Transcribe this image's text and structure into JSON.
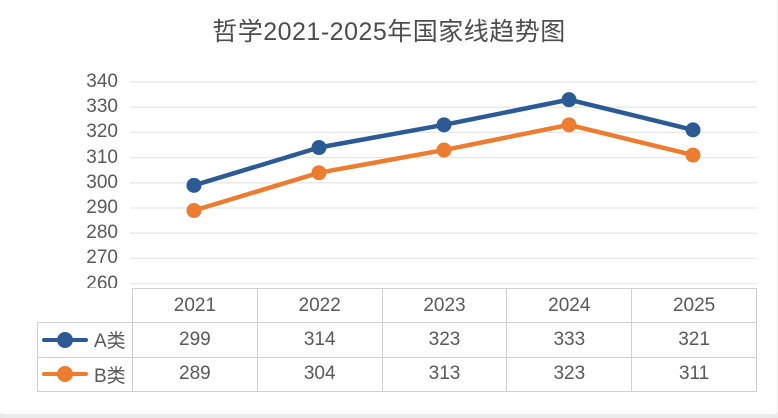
{
  "title": "哲学2021-2025年国家线趋势图",
  "chart_data": {
    "type": "line",
    "title": "哲学2021-2025年国家线趋势图",
    "categories": [
      "2021",
      "2022",
      "2023",
      "2024",
      "2025"
    ],
    "series": [
      {
        "name": "A类",
        "color": "#2B5A95",
        "values": [
          299,
          314,
          323,
          333,
          321
        ]
      },
      {
        "name": "B类",
        "color": "#EC7C30",
        "values": [
          289,
          304,
          313,
          323,
          311
        ]
      }
    ],
    "yticks": [
      340,
      330,
      320,
      310,
      300,
      290,
      280,
      270,
      260
    ],
    "ylim": [
      260,
      340
    ],
    "grid": true,
    "gridline_color": "#e7e7e7",
    "legend_position": "data-table-left",
    "text_color": "#595959"
  }
}
